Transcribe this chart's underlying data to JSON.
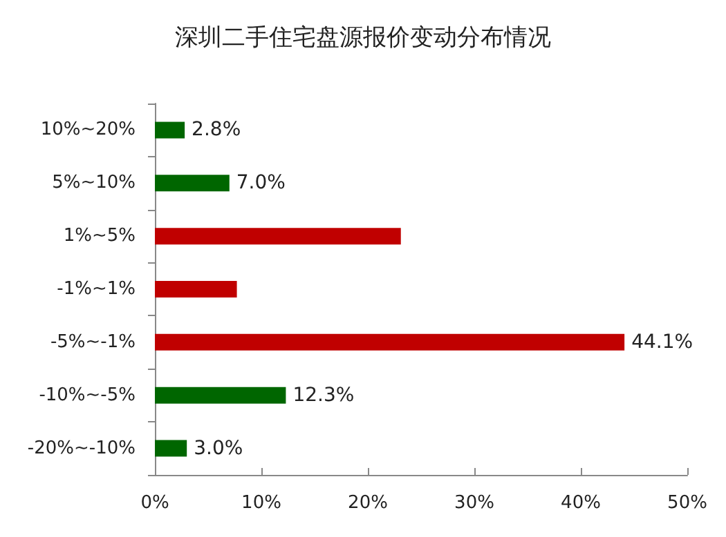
{
  "chart_data": {
    "type": "bar",
    "orientation": "horizontal",
    "title": "深圳二手住宅盘源报价变动分布情况",
    "categories": [
      "10%~20%",
      "5%~10%",
      "1%~5%",
      "-1%~1%",
      "-5%~-1%",
      "-10%~-5%",
      "-20%~-10%"
    ],
    "values": [
      2.8,
      7.0,
      23.1,
      7.7,
      44.1,
      12.3,
      3.0
    ],
    "value_labels": [
      "2.8%",
      "7.0%",
      null,
      null,
      "44.1%",
      "12.3%",
      "3.0%"
    ],
    "colors": [
      "#006600",
      "#006600",
      "#c00000",
      "#c00000",
      "#c00000",
      "#006600",
      "#006600"
    ],
    "xlim": [
      0,
      50
    ],
    "xticks": [
      {
        "value": 0,
        "label": "0%"
      },
      {
        "value": 10,
        "label": "10%"
      },
      {
        "value": 20,
        "label": "20%"
      },
      {
        "value": 30,
        "label": "30%"
      },
      {
        "value": 40,
        "label": "40%"
      },
      {
        "value": 50,
        "label": "50%"
      }
    ],
    "grid": false
  }
}
